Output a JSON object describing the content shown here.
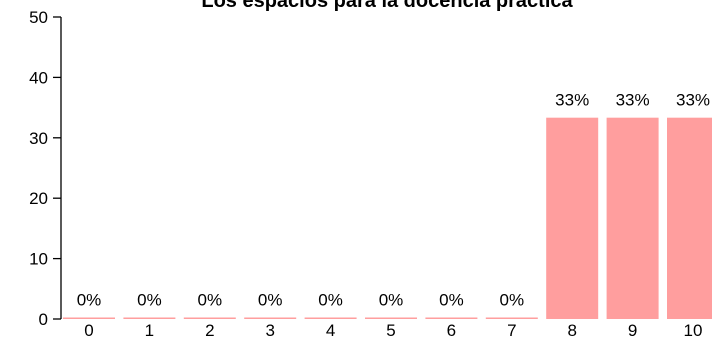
{
  "chart_data": {
    "type": "bar",
    "title": "Los espacios para la docencia práctica",
    "xlabel": "",
    "ylabel": "",
    "categories": [
      "0",
      "1",
      "2",
      "3",
      "4",
      "5",
      "6",
      "7",
      "8",
      "9",
      "10"
    ],
    "values": [
      0,
      0,
      0,
      0,
      0,
      0,
      0,
      0,
      33.33,
      33.33,
      33.33
    ],
    "data_labels": [
      "0%",
      "0%",
      "0%",
      "0%",
      "0%",
      "0%",
      "0%",
      "0%",
      "33%",
      "33%",
      "33%"
    ],
    "ylim": [
      0,
      50
    ],
    "yticks": [
      0,
      10,
      20,
      30,
      40,
      50
    ],
    "bar_color": "#ff9e9e",
    "grid": false,
    "legend": "none"
  }
}
